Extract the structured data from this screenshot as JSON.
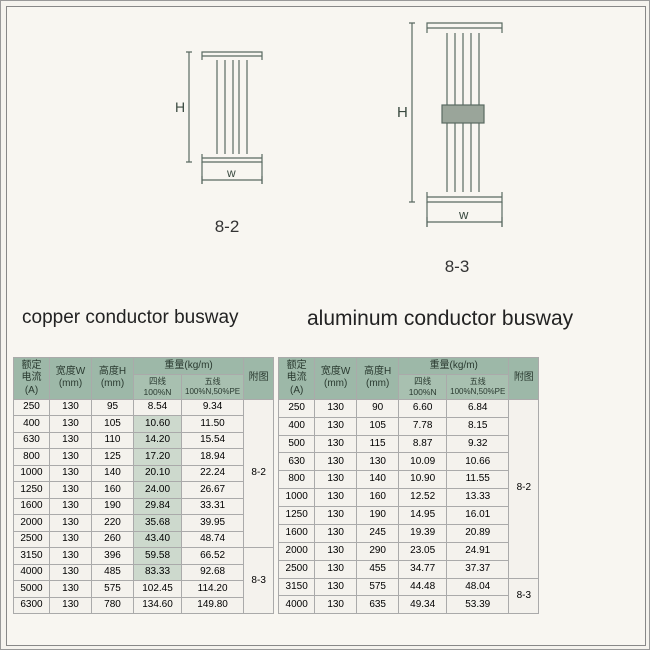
{
  "diagrams": {
    "left": {
      "label": "8-2",
      "H_label": "H",
      "W_label": "w"
    },
    "right": {
      "label": "8-3",
      "H_label": "H",
      "W_label": "w"
    }
  },
  "titles": {
    "copper": "copper conductor busway",
    "aluminum": "aluminum conductor busway"
  },
  "headers": {
    "rated_current": "额定\n电流\n(A)",
    "width": "宽度W\n(mm)",
    "height": "高度H\n(mm)",
    "weight_group": "重量(kg/m)",
    "weight_4wire": "四线\n100%N",
    "weight_5wire": "五线\n100%N,50%PE",
    "fig": "附图"
  },
  "copper_table": {
    "highlight_col": 3,
    "highlight_start": 1,
    "highlight_end": 10,
    "rows": [
      {
        "a": "250",
        "w": "130",
        "h": "95",
        "w4": "8.54",
        "w5": "9.34"
      },
      {
        "a": "400",
        "w": "130",
        "h": "105",
        "w4": "10.60",
        "w5": "11.50"
      },
      {
        "a": "630",
        "w": "130",
        "h": "110",
        "w4": "14.20",
        "w5": "15.54"
      },
      {
        "a": "800",
        "w": "130",
        "h": "125",
        "w4": "17.20",
        "w5": "18.94"
      },
      {
        "a": "1000",
        "w": "130",
        "h": "140",
        "w4": "20.10",
        "w5": "22.24"
      },
      {
        "a": "1250",
        "w": "130",
        "h": "160",
        "w4": "24.00",
        "w5": "26.67"
      },
      {
        "a": "1600",
        "w": "130",
        "h": "190",
        "w4": "29.84",
        "w5": "33.31"
      },
      {
        "a": "2000",
        "w": "130",
        "h": "220",
        "w4": "35.68",
        "w5": "39.95"
      },
      {
        "a": "2500",
        "w": "130",
        "h": "260",
        "w4": "43.40",
        "w5": "48.74"
      },
      {
        "a": "3150",
        "w": "130",
        "h": "396",
        "w4": "59.58",
        "w5": "66.52"
      },
      {
        "a": "4000",
        "w": "130",
        "h": "485",
        "w4": "83.33",
        "w5": "92.68"
      },
      {
        "a": "5000",
        "w": "130",
        "h": "575",
        "w4": "102.45",
        "w5": "114.20"
      },
      {
        "a": "6300",
        "w": "130",
        "h": "780",
        "w4": "134.60",
        "w5": "149.80"
      }
    ],
    "fig_groups": [
      {
        "span": 9,
        "label": "8-2"
      },
      {
        "span": 4,
        "label": "8-3"
      }
    ]
  },
  "aluminum_table": {
    "highlight_col": null,
    "rows": [
      {
        "a": "250",
        "w": "130",
        "h": "90",
        "w4": "6.60",
        "w5": "6.84"
      },
      {
        "a": "400",
        "w": "130",
        "h": "105",
        "w4": "7.78",
        "w5": "8.15"
      },
      {
        "a": "500",
        "w": "130",
        "h": "115",
        "w4": "8.87",
        "w5": "9.32"
      },
      {
        "a": "630",
        "w": "130",
        "h": "130",
        "w4": "10.09",
        "w5": "10.66"
      },
      {
        "a": "800",
        "w": "130",
        "h": "140",
        "w4": "10.90",
        "w5": "11.55"
      },
      {
        "a": "1000",
        "w": "130",
        "h": "160",
        "w4": "12.52",
        "w5": "13.33"
      },
      {
        "a": "1250",
        "w": "130",
        "h": "190",
        "w4": "14.95",
        "w5": "16.01"
      },
      {
        "a": "1600",
        "w": "130",
        "h": "245",
        "w4": "19.39",
        "w5": "20.89"
      },
      {
        "a": "2000",
        "w": "130",
        "h": "290",
        "w4": "23.05",
        "w5": "24.91"
      },
      {
        "a": "2500",
        "w": "130",
        "h": "455",
        "w4": "34.77",
        "w5": "37.37"
      },
      {
        "a": "3150",
        "w": "130",
        "h": "575",
        "w4": "44.48",
        "w5": "48.04"
      },
      {
        "a": "4000",
        "w": "130",
        "h": "635",
        "w4": "49.34",
        "w5": "53.39"
      }
    ],
    "fig_groups": [
      {
        "span": 10,
        "label": "8-2"
      },
      {
        "span": 2,
        "label": "8-3"
      }
    ]
  },
  "colors": {
    "header_bg": "#9db8a8",
    "border": "#aaaaaa",
    "highlight": "#cdd9cd",
    "page_bg": "#f8f6f1"
  }
}
